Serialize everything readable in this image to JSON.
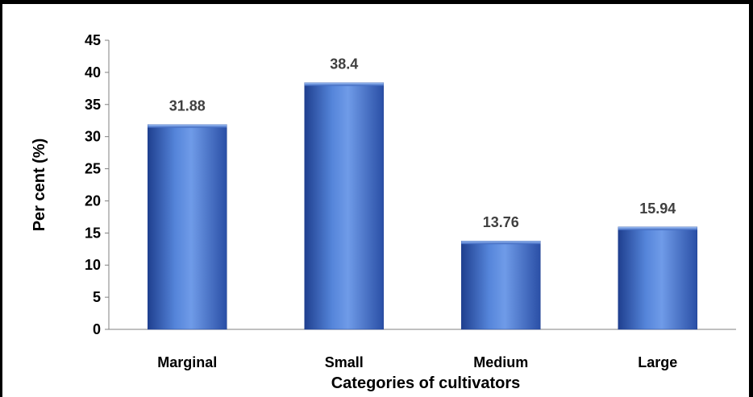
{
  "chart_data": {
    "type": "bar",
    "categories": [
      "Marginal",
      "Small",
      "Medium",
      "Large"
    ],
    "values": [
      31.88,
      38.4,
      13.76,
      15.94
    ],
    "data_labels": [
      "31.88",
      "38.4",
      "13.76",
      "15.94"
    ],
    "title": "",
    "xlabel": "Categories of cultivators",
    "ylabel": "Per cent (%)",
    "ylim": [
      0,
      45
    ],
    "yticks": [
      "0",
      "5",
      "10",
      "15",
      "20",
      "25",
      "30",
      "35",
      "40",
      "45"
    ],
    "grid": false,
    "legend": "none",
    "colors": {
      "bar_dark": "#1F3F8F",
      "bar_mid": "#4A78D0",
      "bar_light": "#6F9BE8",
      "axis": "#808080"
    }
  }
}
